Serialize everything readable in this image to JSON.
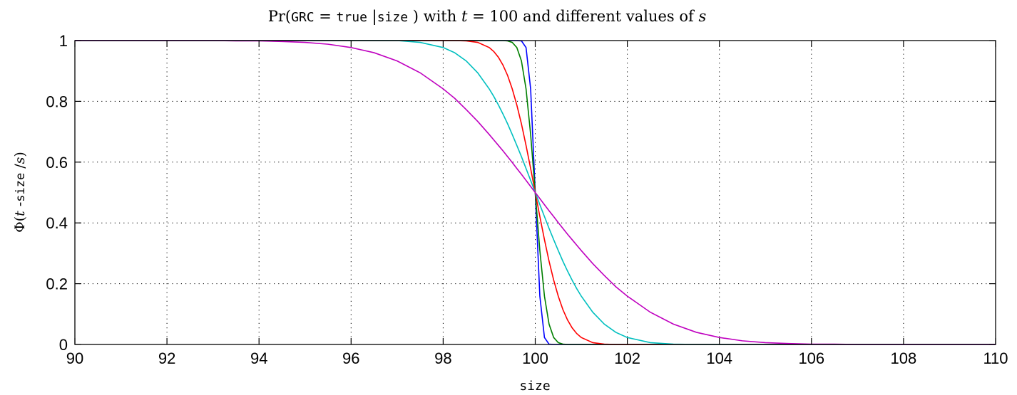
{
  "chart_data": {
    "type": "line",
    "title": {
      "prefix": "Pr(",
      "var": "GRC",
      "eq": " = ",
      "val": "true",
      "bar": " |",
      "cond": "size",
      "mid": " ) with ",
      "t": "t",
      "tval": " = 100 and different values of ",
      "s": "s"
    },
    "xlabel": "size",
    "ylabel": {
      "prefix": "Φ(",
      "t": "t",
      "minus": " -",
      "var": "size",
      "slash": " /",
      "s": "s",
      "suffix": ")"
    },
    "xlim": [
      90,
      110
    ],
    "ylim": [
      0,
      1
    ],
    "x_ticks": [
      "90",
      "92",
      "94",
      "96",
      "98",
      "100",
      "102",
      "104",
      "106",
      "108",
      "110"
    ],
    "y_ticks": [
      "0",
      "0.2",
      "0.4",
      "0.6",
      "0.8",
      "1"
    ],
    "grid": true,
    "t": 100,
    "x": [
      90,
      90.5,
      91,
      91.5,
      92,
      92.5,
      93,
      93.5,
      94,
      94.5,
      95,
      95.5,
      96,
      96.5,
      97,
      97.5,
      98,
      98.25,
      98.5,
      98.75,
      99,
      99.1,
      99.2,
      99.3,
      99.4,
      99.5,
      99.6,
      99.7,
      99.8,
      99.9,
      100,
      100.1,
      100.2,
      100.3,
      100.4,
      100.5,
      100.6,
      100.7,
      100.8,
      100.9,
      101,
      101.25,
      101.5,
      101.75,
      102,
      102.5,
      103,
      103.5,
      104,
      104.5,
      105,
      105.5,
      106,
      106.5,
      107,
      107.5,
      108,
      108.5,
      109,
      109.5,
      110
    ],
    "series": [
      {
        "color": "#0000ff",
        "values": [
          1,
          1,
          1,
          1,
          1,
          1,
          1,
          1,
          1,
          1,
          1,
          1,
          1,
          1,
          1,
          1,
          1,
          1,
          1,
          1,
          1,
          1,
          1,
          1,
          1,
          1,
          1,
          0.999,
          0.977,
          0.841,
          0.5,
          0.159,
          0.023,
          0.001,
          0,
          0,
          0,
          0,
          0,
          0,
          0,
          0,
          0,
          0,
          0,
          0,
          0,
          0,
          0,
          0,
          0,
          0,
          0,
          0,
          0,
          0,
          0,
          0,
          0,
          0,
          0
        ]
      },
      {
        "color": "#007f00",
        "values": [
          1,
          1,
          1,
          1,
          1,
          1,
          1,
          1,
          1,
          1,
          1,
          1,
          1,
          1,
          1,
          1,
          1,
          1,
          1,
          1,
          1,
          1,
          1,
          1,
          0.999,
          0.994,
          0.977,
          0.933,
          0.841,
          0.691,
          0.5,
          0.309,
          0.159,
          0.067,
          0.023,
          0.006,
          0.001,
          0,
          0,
          0,
          0,
          0,
          0,
          0,
          0,
          0,
          0,
          0,
          0,
          0,
          0,
          0,
          0,
          0,
          0,
          0,
          0,
          0,
          0,
          0,
          0
        ]
      },
      {
        "color": "#ff0000",
        "values": [
          1,
          1,
          1,
          1,
          1,
          1,
          1,
          1,
          1,
          1,
          1,
          1,
          1,
          1,
          1,
          1,
          1,
          1,
          0.999,
          0.994,
          0.977,
          0.964,
          0.945,
          0.919,
          0.885,
          0.841,
          0.788,
          0.726,
          0.655,
          0.579,
          0.5,
          0.421,
          0.345,
          0.274,
          0.212,
          0.159,
          0.115,
          0.081,
          0.055,
          0.036,
          0.023,
          0.006,
          0.001,
          0,
          0,
          0,
          0,
          0,
          0,
          0,
          0,
          0,
          0,
          0,
          0,
          0,
          0,
          0,
          0,
          0,
          0
        ]
      },
      {
        "color": "#00bfbf",
        "values": [
          1,
          1,
          1,
          1,
          1,
          1,
          1,
          1,
          1,
          1,
          1,
          1,
          1,
          1,
          1,
          0.994,
          0.977,
          0.96,
          0.933,
          0.894,
          0.841,
          0.816,
          0.788,
          0.758,
          0.726,
          0.691,
          0.655,
          0.618,
          0.579,
          0.54,
          0.5,
          0.46,
          0.421,
          0.382,
          0.345,
          0.309,
          0.274,
          0.242,
          0.212,
          0.184,
          0.159,
          0.106,
          0.067,
          0.04,
          0.023,
          0.006,
          0.001,
          0,
          0,
          0,
          0,
          0,
          0,
          0,
          0,
          0,
          0,
          0,
          0,
          0,
          0
        ]
      },
      {
        "color": "#bf00bf",
        "values": [
          1,
          1,
          1,
          1,
          1,
          1,
          1,
          0.999,
          0.999,
          0.997,
          0.994,
          0.988,
          0.977,
          0.96,
          0.933,
          0.894,
          0.841,
          0.81,
          0.773,
          0.734,
          0.691,
          0.673,
          0.655,
          0.637,
          0.618,
          0.599,
          0.579,
          0.56,
          0.54,
          0.52,
          0.5,
          0.48,
          0.46,
          0.44,
          0.421,
          0.401,
          0.382,
          0.363,
          0.345,
          0.327,
          0.309,
          0.266,
          0.227,
          0.19,
          0.159,
          0.106,
          0.067,
          0.04,
          0.023,
          0.012,
          0.006,
          0.003,
          0.001,
          0.001,
          0,
          0,
          0,
          0,
          0,
          0,
          0
        ]
      }
    ]
  }
}
